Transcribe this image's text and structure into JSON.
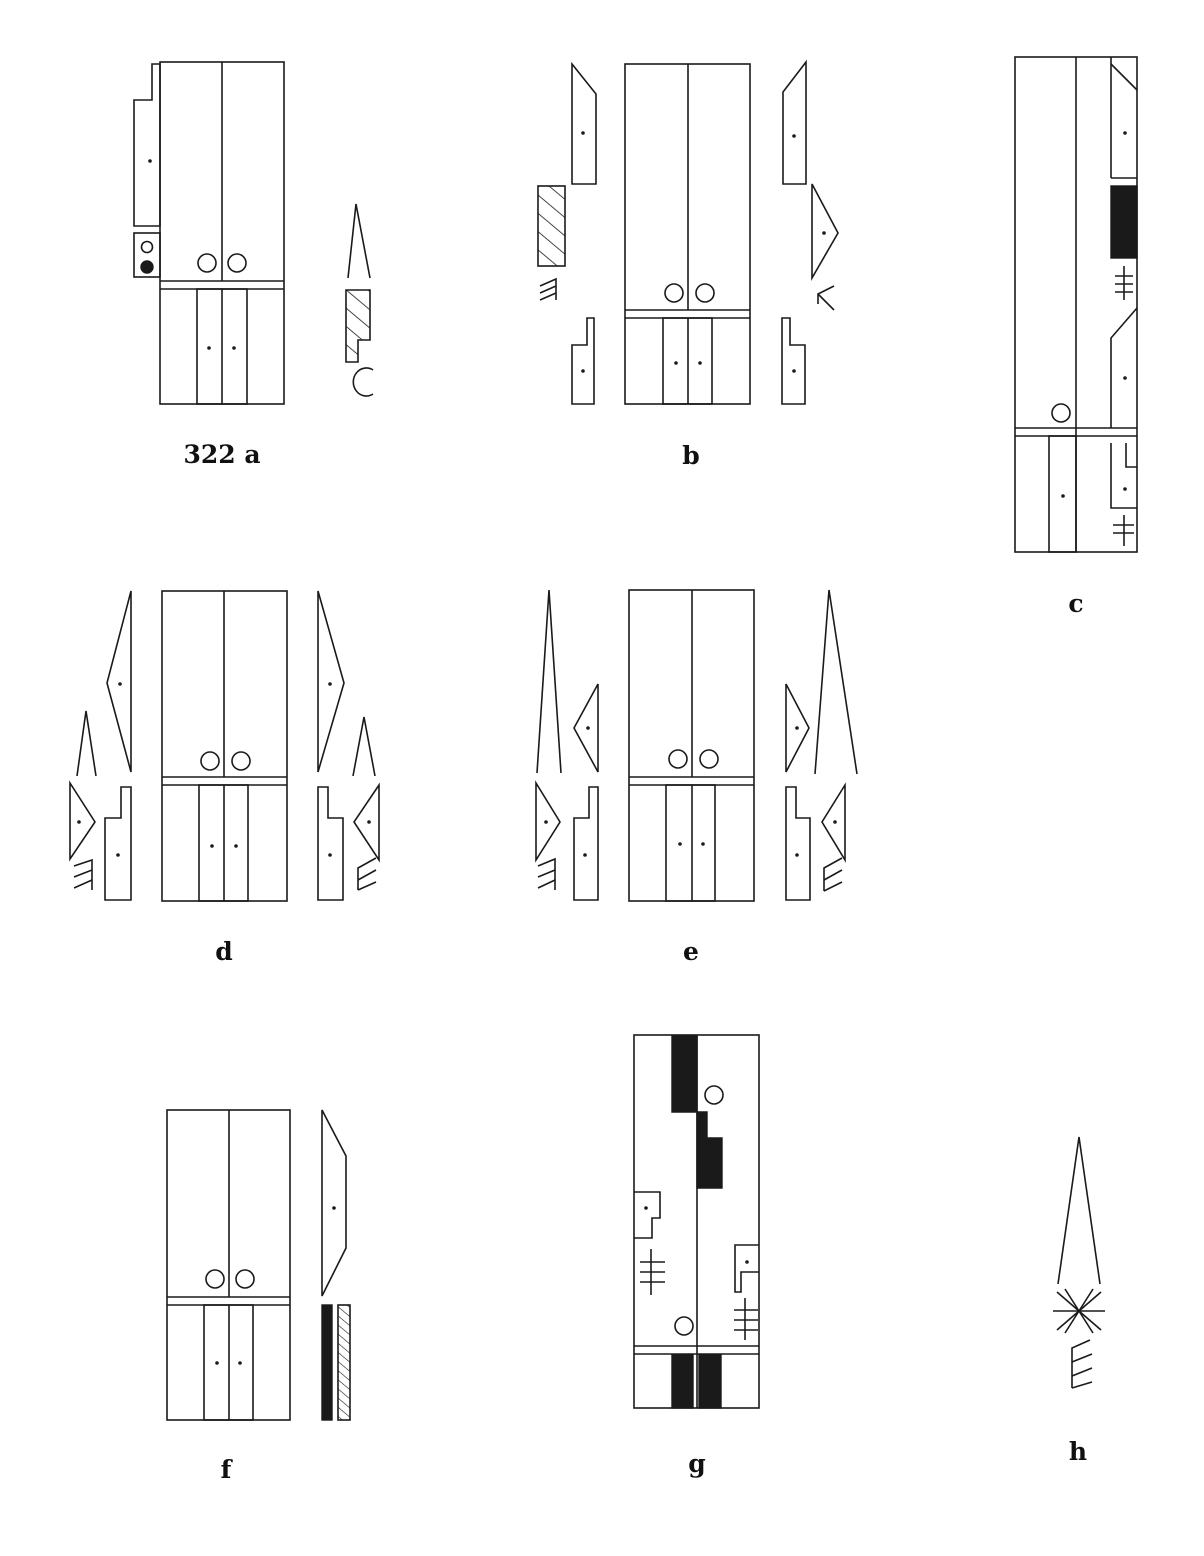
{
  "figures": [
    {
      "id": "a",
      "label": "322 a"
    },
    {
      "id": "b",
      "label": "b"
    },
    {
      "id": "c",
      "label": "c"
    },
    {
      "id": "d",
      "label": "d"
    },
    {
      "id": "e",
      "label": "e"
    },
    {
      "id": "f",
      "label": "f"
    },
    {
      "id": "g",
      "label": "g"
    },
    {
      "id": "h",
      "label": "h"
    }
  ]
}
